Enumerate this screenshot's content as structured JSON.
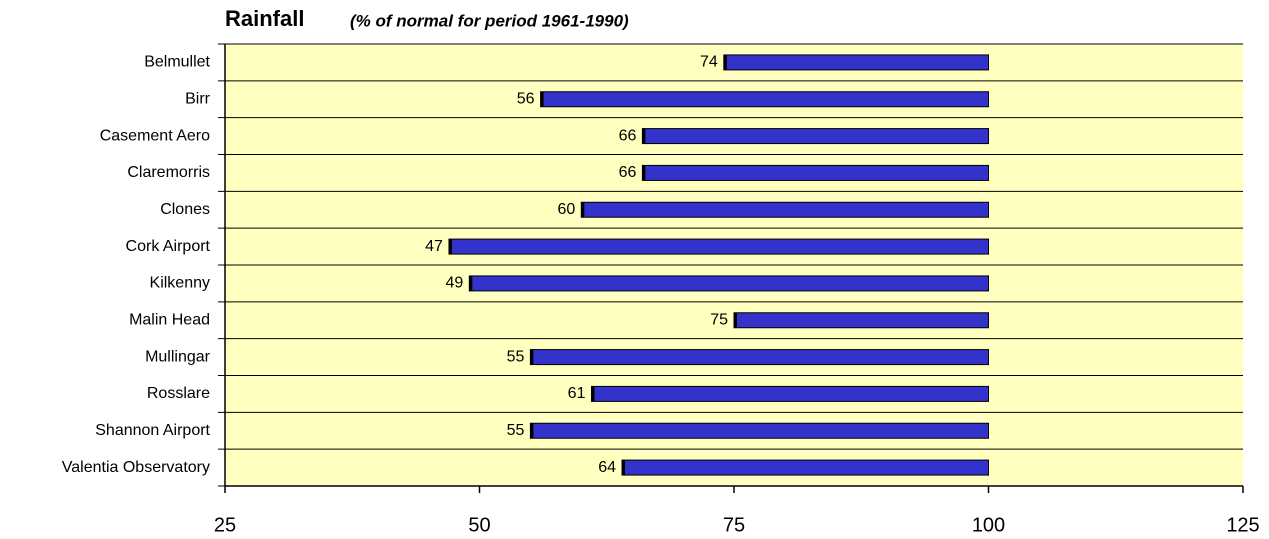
{
  "chart_data": {
    "type": "bar",
    "orientation": "horizontal",
    "title": "Rainfall",
    "subtitle": "(% of normal for period 1961-1990)",
    "categories": [
      "Belmullet",
      "Birr",
      "Casement Aero",
      "Claremorris",
      "Clones",
      "Cork Airport",
      "Kilkenny",
      "Malin Head",
      "Mullingar",
      "Rosslare",
      "Shannon Airport",
      "Valentia Observatory"
    ],
    "values": [
      74,
      56,
      66,
      66,
      60,
      47,
      49,
      75,
      55,
      61,
      55,
      64
    ],
    "baseline": 100,
    "color": "#3333cc",
    "background": "#ffffc0",
    "xlim": [
      25,
      125
    ],
    "xticks": [
      25,
      50,
      75,
      100,
      125
    ]
  }
}
